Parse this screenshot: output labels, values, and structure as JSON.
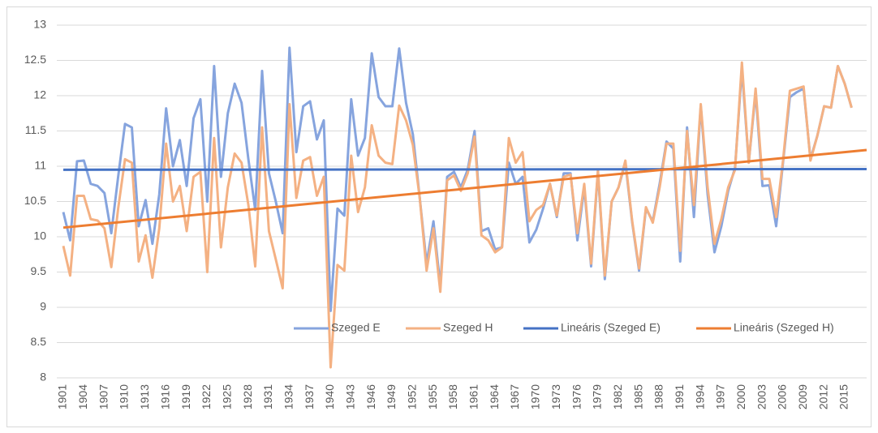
{
  "chart_data": {
    "type": "line",
    "categories": [
      "1901",
      null,
      null,
      "1904",
      null,
      null,
      "1907",
      null,
      null,
      "1910",
      null,
      null,
      "1913",
      null,
      null,
      "1916",
      null,
      null,
      "1919",
      null,
      null,
      "1922",
      null,
      null,
      "1925",
      null,
      null,
      "1928",
      null,
      null,
      "1931",
      null,
      null,
      "1934",
      null,
      null,
      "1937",
      null,
      null,
      "1940",
      null,
      null,
      "1943",
      null,
      null,
      "1946",
      null,
      null,
      "1949",
      null,
      null,
      "1952",
      null,
      null,
      "1955",
      null,
      null,
      "1958",
      null,
      null,
      "1961",
      null,
      null,
      "1964",
      null,
      null,
      "1967",
      null,
      null,
      "1970",
      null,
      null,
      "1973",
      null,
      null,
      "1976",
      null,
      null,
      "1979",
      null,
      null,
      "1982",
      null,
      null,
      "1985",
      null,
      null,
      "1988",
      null,
      null,
      "1991",
      null,
      null,
      "1994",
      null,
      null,
      "1997",
      null,
      null,
      "2000",
      null,
      null,
      "2003",
      null,
      null,
      "2006",
      null,
      null,
      "2009",
      null,
      null,
      "2012",
      null,
      null,
      "2015",
      null
    ],
    "series": [
      {
        "name": "Szeged E",
        "color": "#86a4de",
        "values": [
          10.35,
          9.95,
          11.07,
          11.08,
          10.75,
          10.72,
          10.62,
          10.05,
          10.85,
          11.6,
          11.55,
          10.15,
          10.52,
          9.9,
          10.6,
          11.82,
          11.0,
          11.37,
          10.72,
          11.68,
          11.95,
          10.5,
          12.42,
          10.85,
          11.75,
          12.17,
          11.9,
          11.1,
          10.38,
          12.35,
          10.9,
          10.5,
          10.05,
          12.68,
          11.2,
          11.85,
          11.92,
          11.38,
          11.65,
          8.95,
          10.4,
          10.3,
          11.95,
          11.15,
          11.4,
          12.6,
          11.98,
          11.85,
          11.85,
          12.67,
          11.9,
          11.45,
          10.55,
          9.62,
          10.22,
          9.3,
          10.85,
          10.92,
          10.7,
          10.95,
          11.5,
          10.08,
          10.12,
          9.82,
          9.85,
          11.05,
          10.75,
          10.85,
          9.92,
          10.1,
          10.4,
          10.75,
          10.28,
          10.9,
          10.9,
          9.95,
          10.7,
          9.58,
          10.92,
          9.4,
          10.5,
          10.7,
          11.05,
          10.2,
          9.52,
          10.4,
          10.22,
          10.75,
          11.35,
          11.25,
          9.65,
          11.55,
          10.28,
          11.85,
          10.6,
          9.78,
          10.15,
          10.65,
          10.98,
          12.38,
          11.05,
          12.05,
          10.72,
          10.73,
          10.15,
          11.05,
          11.98,
          12.05,
          12.1,
          11.1,
          11.43,
          11.85,
          11.83,
          12.42,
          12.17,
          11.83
        ]
      },
      {
        "name": "Szeged H",
        "color": "#f4b183",
        "values": [
          9.87,
          9.45,
          10.58,
          10.58,
          10.25,
          10.23,
          10.12,
          9.57,
          10.4,
          11.1,
          11.05,
          9.65,
          10.02,
          9.42,
          10.12,
          11.32,
          10.5,
          10.72,
          10.08,
          10.85,
          10.92,
          9.5,
          11.4,
          9.85,
          10.7,
          11.18,
          11.05,
          10.45,
          9.58,
          11.55,
          10.08,
          9.68,
          9.27,
          11.88,
          10.55,
          11.08,
          11.13,
          10.58,
          10.85,
          8.15,
          9.6,
          9.52,
          11.15,
          10.35,
          10.7,
          11.58,
          11.15,
          11.05,
          11.03,
          11.86,
          11.65,
          11.3,
          10.55,
          9.52,
          10.12,
          9.22,
          10.8,
          10.87,
          10.65,
          10.9,
          11.42,
          10.02,
          9.95,
          9.78,
          9.85,
          11.4,
          11.05,
          11.2,
          10.22,
          10.38,
          10.45,
          10.75,
          10.3,
          10.85,
          10.88,
          10.05,
          10.75,
          9.62,
          10.95,
          9.45,
          10.5,
          10.7,
          11.08,
          10.22,
          9.55,
          10.42,
          10.2,
          10.7,
          11.32,
          11.32,
          9.8,
          11.5,
          10.45,
          11.88,
          10.7,
          9.9,
          10.25,
          10.7,
          10.95,
          12.47,
          11.05,
          12.1,
          10.82,
          10.82,
          10.28,
          11.08,
          12.07,
          12.1,
          12.13,
          11.08,
          11.43,
          11.85,
          11.83,
          12.42,
          12.17,
          11.83
        ]
      }
    ],
    "trendlines": [
      {
        "name": "Lineáris (Szeged E)",
        "color": "#4472c4",
        "values": [
          10.95,
          10.96
        ]
      },
      {
        "name": "Lineáris (Szeged H)",
        "color": "#ed7d31",
        "values": [
          10.13,
          11.23
        ]
      }
    ],
    "ylim": [
      8,
      13
    ],
    "yticks": [
      8,
      8.5,
      9,
      9.5,
      10,
      10.5,
      11,
      11.5,
      12,
      12.5,
      13
    ],
    "grid": true
  }
}
